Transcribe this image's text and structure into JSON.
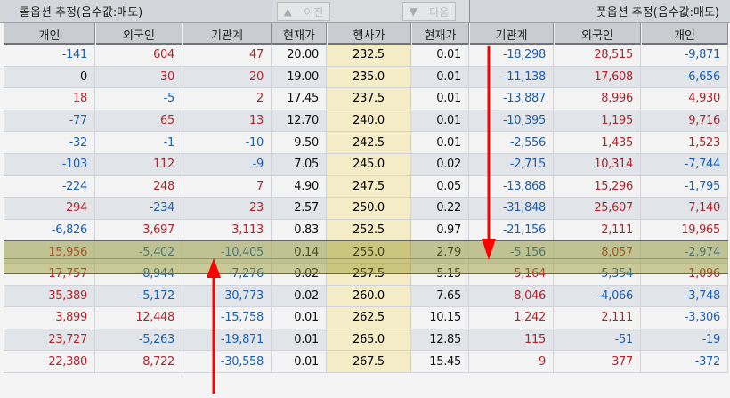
{
  "call_header": {
    "title": "콜옵션 추정(음수값:매도)",
    "columns": [
      "개인",
      "외국인",
      "기관계"
    ]
  },
  "put_header": {
    "title": "풋옵션 추정(음수값:매도)",
    "columns": [
      "기관계",
      "외국인",
      "개인"
    ]
  },
  "center_header": {
    "prev_label": "이전",
    "next_label": "다음",
    "columns": [
      "현재가",
      "행사가",
      "현재가"
    ]
  },
  "icons": {
    "prev": "triangle-up-icon",
    "next": "triangle-down-icon"
  },
  "colors": {
    "positive": "#b0232b",
    "negative": "#1d5fae",
    "highlight": "#a8a84a",
    "strike_bg": "#f4ecc6",
    "arrow": "#ff0000"
  },
  "highlighted_strikes": [
    "252.5",
    "255.0"
  ],
  "rows": [
    {
      "c_ind": "-141",
      "c_for": "604",
      "c_inst": "47",
      "c_price": "20.00",
      "strike": "232.5",
      "p_price": "0.01",
      "p_inst": "-18,298",
      "p_for": "28,515",
      "p_ind": "-9,871"
    },
    {
      "c_ind": "0",
      "c_for": "30",
      "c_inst": "20",
      "c_price": "19.00",
      "strike": "235.0",
      "p_price": "0.01",
      "p_inst": "-11,138",
      "p_for": "17,608",
      "p_ind": "-6,656"
    },
    {
      "c_ind": "18",
      "c_for": "-5",
      "c_inst": "2",
      "c_price": "17.45",
      "strike": "237.5",
      "p_price": "0.01",
      "p_inst": "-13,887",
      "p_for": "8,996",
      "p_ind": "4,930"
    },
    {
      "c_ind": "-77",
      "c_for": "65",
      "c_inst": "13",
      "c_price": "12.70",
      "strike": "240.0",
      "p_price": "0.01",
      "p_inst": "-10,395",
      "p_for": "1,195",
      "p_ind": "9,716"
    },
    {
      "c_ind": "-32",
      "c_for": "-1",
      "c_inst": "-10",
      "c_price": "9.50",
      "strike": "242.5",
      "p_price": "0.01",
      "p_inst": "-2,556",
      "p_for": "1,435",
      "p_ind": "1,523"
    },
    {
      "c_ind": "-103",
      "c_for": "112",
      "c_inst": "-9",
      "c_price": "7.05",
      "strike": "245.0",
      "p_price": "0.02",
      "p_inst": "-2,715",
      "p_for": "10,314",
      "p_ind": "-7,744"
    },
    {
      "c_ind": "-224",
      "c_for": "248",
      "c_inst": "7",
      "c_price": "4.90",
      "strike": "247.5",
      "p_price": "0.05",
      "p_inst": "-13,868",
      "p_for": "15,296",
      "p_ind": "-1,795"
    },
    {
      "c_ind": "294",
      "c_for": "-234",
      "c_inst": "23",
      "c_price": "2.57",
      "strike": "250.0",
      "p_price": "0.22",
      "p_inst": "-31,848",
      "p_for": "25,607",
      "p_ind": "7,140"
    },
    {
      "c_ind": "-6,826",
      "c_for": "3,697",
      "c_inst": "3,113",
      "c_price": "0.83",
      "strike": "252.5",
      "p_price": "0.97",
      "p_inst": "-21,156",
      "p_for": "2,111",
      "p_ind": "19,965"
    },
    {
      "c_ind": "15,956",
      "c_for": "-5,402",
      "c_inst": "-10,405",
      "c_price": "0.14",
      "strike": "255.0",
      "p_price": "2.79",
      "p_inst": "-5,156",
      "p_for": "8,057",
      "p_ind": "-2,974"
    },
    {
      "c_ind": "17,757",
      "c_for": "-8,944",
      "c_inst": "-7,276",
      "c_price": "0.02",
      "strike": "257.5",
      "p_price": "5.15",
      "p_inst": "5,164",
      "p_for": "-5,354",
      "p_ind": "1,096"
    },
    {
      "c_ind": "35,389",
      "c_for": "-5,172",
      "c_inst": "-30,773",
      "c_price": "0.02",
      "strike": "260.0",
      "p_price": "7.65",
      "p_inst": "8,046",
      "p_for": "-4,066",
      "p_ind": "-3,748"
    },
    {
      "c_ind": "3,899",
      "c_for": "12,448",
      "c_inst": "-15,758",
      "c_price": "0.01",
      "strike": "262.5",
      "p_price": "10.15",
      "p_inst": "1,242",
      "p_for": "2,111",
      "p_ind": "-3,306"
    },
    {
      "c_ind": "23,727",
      "c_for": "-5,263",
      "c_inst": "-19,871",
      "c_price": "0.01",
      "strike": "265.0",
      "p_price": "12.85",
      "p_inst": "115",
      "p_for": "-51",
      "p_ind": "-19"
    },
    {
      "c_ind": "22,380",
      "c_for": "8,722",
      "c_inst": "-30,558",
      "c_price": "0.01",
      "strike": "267.5",
      "p_price": "15.45",
      "p_inst": "9",
      "p_for": "377",
      "p_ind": "-372"
    }
  ]
}
